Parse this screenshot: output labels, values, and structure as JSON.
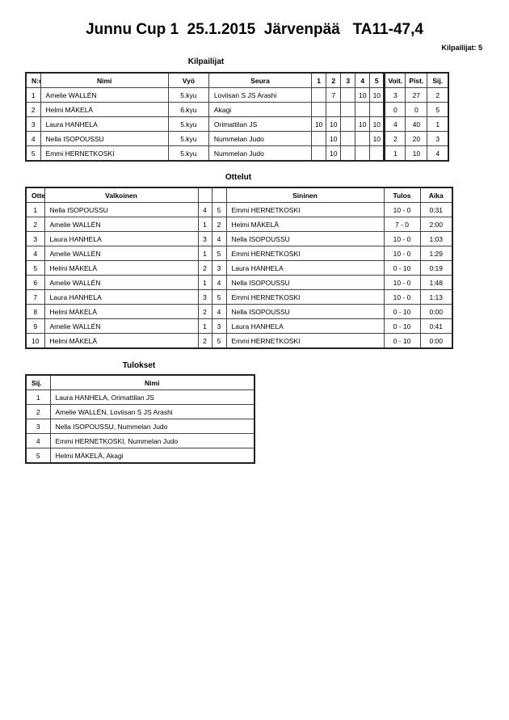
{
  "title": "Junnu Cup 1  25.1.2015  Järvenpää   TA11-47,4",
  "competitor_count": "Kilpailijat: 5",
  "competitors": {
    "heading": "Kilpailijat",
    "columns": [
      "N:o",
      "Nimi",
      "Vyö",
      "Seura",
      "1",
      "2",
      "3",
      "4",
      "5",
      "Voit.",
      "Pist.",
      "Sij."
    ],
    "rows": [
      [
        "1",
        "Amelie WALLÉN",
        "5.kyu",
        "Loviisan S JS Arashi",
        "",
        "7",
        "",
        "10",
        "10",
        "3",
        "27",
        "2"
      ],
      [
        "2",
        "Helmi MÄKELÄ",
        "6.kyu",
        "Akagi",
        "",
        "",
        "",
        "",
        "",
        "0",
        "0",
        "5"
      ],
      [
        "3",
        "Laura HANHELA",
        "5.kyu",
        "Orimattilan JS",
        "10",
        "10",
        "",
        "10",
        "10",
        "4",
        "40",
        "1"
      ],
      [
        "4",
        "Nella ISOPOUSSU",
        "5.kyu",
        "Nummelan Judo",
        "",
        "10",
        "",
        "",
        "10",
        "2",
        "20",
        "3"
      ],
      [
        "5",
        "Emmi HERNETKOSKI",
        "5.kyu",
        "Nummelan Judo",
        "",
        "10",
        "",
        "",
        "",
        "1",
        "10",
        "4"
      ]
    ]
  },
  "matches": {
    "heading": "Ottelut",
    "columns": [
      "Ottelu",
      "Valkoinen",
      "",
      "",
      "Sininen",
      "Tulos",
      "Aika"
    ],
    "rows": [
      [
        "1",
        "Nella ISOPOUSSU",
        "4",
        "5",
        "Emmi HERNETKOSKI",
        "10 - 0",
        "0:31"
      ],
      [
        "2",
        "Amelie WALLÉN",
        "1",
        "2",
        "Helmi MÄKELÄ",
        "7 - 0",
        "2:00"
      ],
      [
        "3",
        "Laura HANHELA",
        "3",
        "4",
        "Nella ISOPOUSSU",
        "10 - 0",
        "1:03"
      ],
      [
        "4",
        "Amelie WALLÉN",
        "1",
        "5",
        "Emmi HERNETKOSKI",
        "10 - 0",
        "1:29"
      ],
      [
        "5",
        "Helmi MÄKELÄ",
        "2",
        "3",
        "Laura HANHELA",
        "0 - 10",
        "0:19"
      ],
      [
        "6",
        "Amelie WALLÉN",
        "1",
        "4",
        "Nella ISOPOUSSU",
        "10 - 0",
        "1:48"
      ],
      [
        "7",
        "Laura HANHELA",
        "3",
        "5",
        "Emmi HERNETKOSKI",
        "10 - 0",
        "1:13"
      ],
      [
        "8",
        "Helmi MÄKELÄ",
        "2",
        "4",
        "Nella ISOPOUSSU",
        "0 - 10",
        "0:00"
      ],
      [
        "9",
        "Amelie WALLÉN",
        "1",
        "3",
        "Laura HANHELA",
        "0 - 10",
        "0:41"
      ],
      [
        "10",
        "Helmi MÄKELÄ",
        "2",
        "5",
        "Emmi HERNETKOSKI",
        "0 - 10",
        "0:00"
      ]
    ]
  },
  "results": {
    "heading": "Tulokset",
    "columns": [
      "Sij.",
      "Nimi"
    ],
    "rows": [
      [
        "1",
        "Laura HANHELA, Orimattilan JS"
      ],
      [
        "2",
        "Amelie WALLÉN, Loviisan S JS Arashi"
      ],
      [
        "3",
        "Nella ISOPOUSSU, Nummelan Judo"
      ],
      [
        "4",
        "Emmi HERNETKOSKI, Nummelan Judo"
      ],
      [
        "5",
        "Helmi MÄKELÄ, Akagi"
      ]
    ]
  }
}
